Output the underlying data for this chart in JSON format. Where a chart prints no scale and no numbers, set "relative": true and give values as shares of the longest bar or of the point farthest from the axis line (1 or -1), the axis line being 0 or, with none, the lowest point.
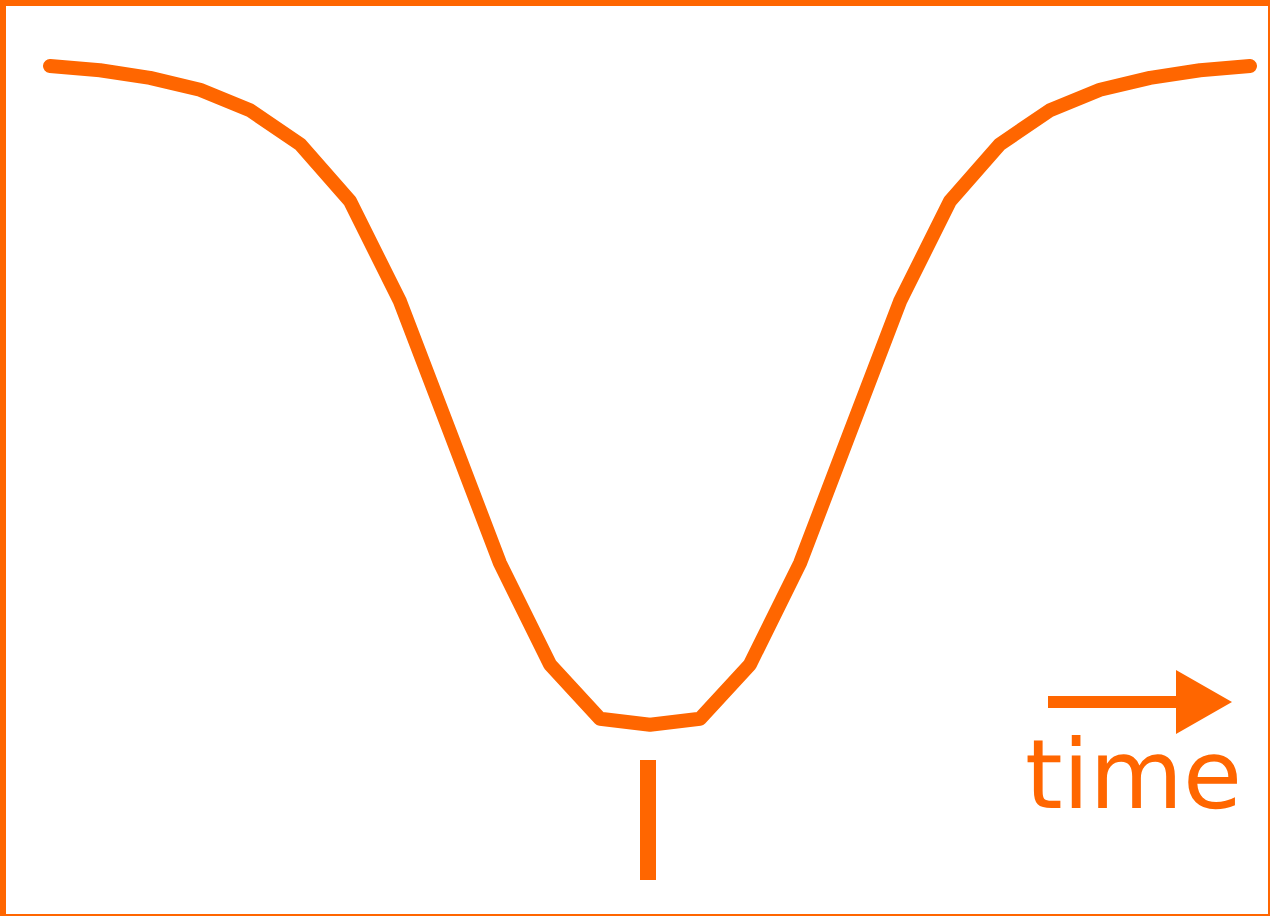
{
  "chart_data": {
    "type": "line",
    "relative": true,
    "xlabel": "time",
    "marker": "none",
    "color": "#ff6600",
    "categories": [
      null,
      null,
      null,
      null,
      null,
      null,
      null,
      null,
      null,
      null,
      null,
      null,
      null,
      null,
      null,
      null,
      null,
      null,
      null,
      null,
      null,
      null,
      null,
      null,
      null
    ],
    "values": [
      1,
      0.995,
      0.986,
      0.972,
      0.948,
      0.908,
      0.841,
      0.723,
      0.569,
      0.415,
      0.296,
      0.232,
      0.225,
      0.232,
      0.296,
      0.415,
      0.569,
      0.723,
      0.841,
      0.908,
      0.948,
      0.972,
      0.986,
      0.995,
      1
    ]
  }
}
